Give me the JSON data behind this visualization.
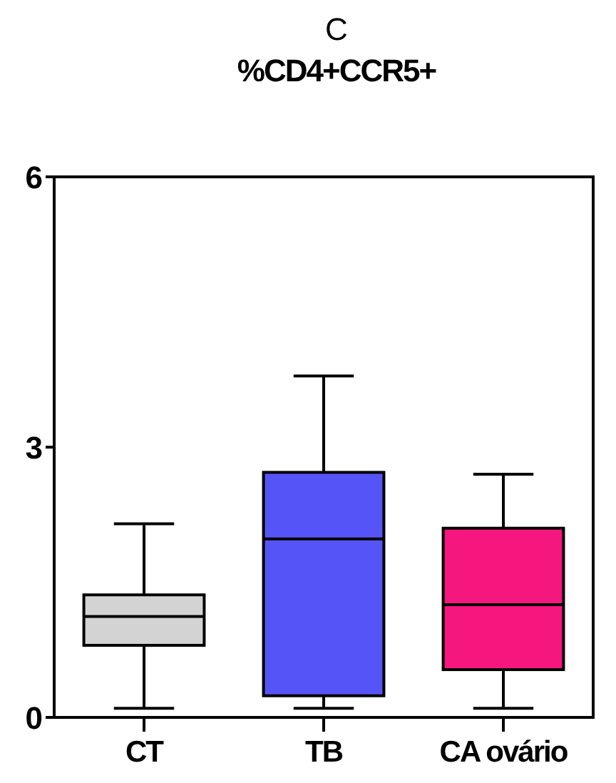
{
  "chart_data": {
    "type": "box",
    "title": "C",
    "subtitle": "%CD4+CCR5+",
    "categories": [
      "CT",
      "TB",
      "CA ovário"
    ],
    "colors": [
      "#d3d3d3",
      "#5555f7",
      "#f5167e"
    ],
    "boxes": [
      {
        "low": 0.1,
        "q1": 0.8,
        "median": 1.12,
        "q3": 1.36,
        "high": 2.15
      },
      {
        "low": 0.1,
        "q1": 0.24,
        "median": 1.98,
        "q3": 2.72,
        "high": 3.79
      },
      {
        "low": 0.1,
        "q1": 0.53,
        "median": 1.25,
        "q3": 2.1,
        "high": 2.7
      }
    ],
    "ylim": [
      0,
      6
    ],
    "yticks": [
      0,
      3,
      6
    ],
    "grid": false
  }
}
